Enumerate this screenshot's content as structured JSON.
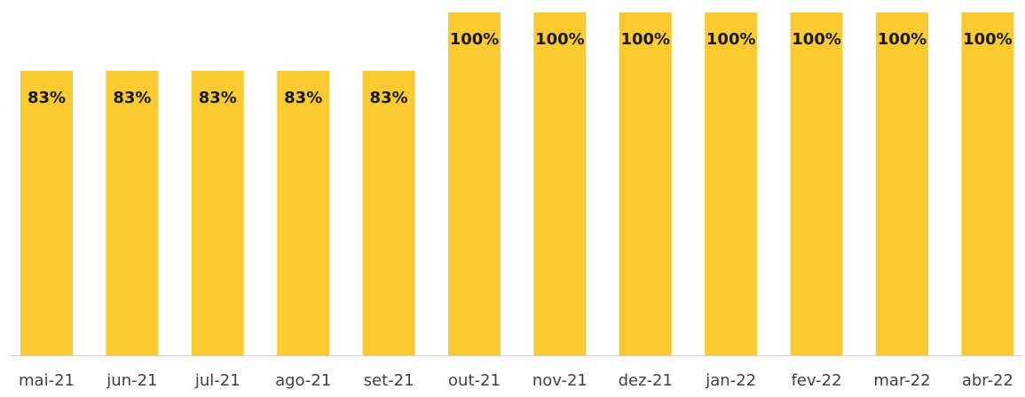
{
  "chart_data": {
    "type": "bar",
    "categories": [
      "mai-21",
      "jun-21",
      "jul-21",
      "ago-21",
      "set-21",
      "out-21",
      "nov-21",
      "dez-21",
      "jan-22",
      "fev-22",
      "mar-22",
      "abr-22"
    ],
    "values": [
      83,
      83,
      83,
      83,
      83,
      100,
      100,
      100,
      100,
      100,
      100,
      100
    ],
    "value_labels": [
      "83%",
      "83%",
      "83%",
      "83%",
      "83%",
      "100%",
      "100%",
      "100%",
      "100%",
      "100%",
      "100%",
      "100%"
    ],
    "color": "#f9cb30",
    "ylim": [
      0,
      100
    ]
  }
}
